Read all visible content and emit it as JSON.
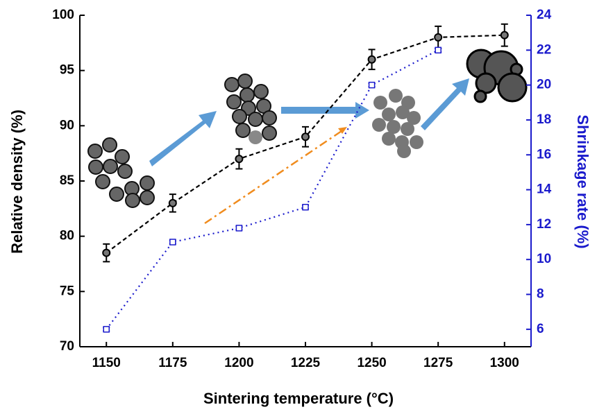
{
  "chart_data": {
    "type": "line",
    "xlabel": "Sintering temperature (°C)",
    "ylabel": "Relative density (%)",
    "y2label": "Shrinkage rate (%)",
    "x": [
      1150,
      1175,
      1200,
      1225,
      1250,
      1275,
      1300
    ],
    "xlim": [
      1140,
      1310
    ],
    "xticks": [
      1150,
      1175,
      1200,
      1225,
      1250,
      1275,
      1300
    ],
    "ylim": [
      70,
      100
    ],
    "yticks": [
      70,
      75,
      80,
      85,
      90,
      95,
      100
    ],
    "y2lim": [
      5,
      24
    ],
    "y2ticks": [
      6,
      8,
      10,
      12,
      14,
      16,
      18,
      20,
      22,
      24
    ],
    "y2color": "#1a1acc",
    "grid": false,
    "series": [
      {
        "color": "#000000",
        "values": [
          78.5,
          83,
          87,
          89,
          96,
          98,
          98.2
        ],
        "errors": [
          0.8,
          0.8,
          0.9,
          0.9,
          0.9,
          1.0,
          1.0
        ]
      },
      {
        "color": "#1a1acc",
        "axis": "y2",
        "values": [
          6.0,
          11.0,
          11.8,
          13.0,
          20.0,
          22.0,
          null
        ],
        "errors": [
          0.1,
          0.1,
          0.1,
          0.1,
          0.1,
          0.1,
          null
        ]
      }
    ]
  }
}
